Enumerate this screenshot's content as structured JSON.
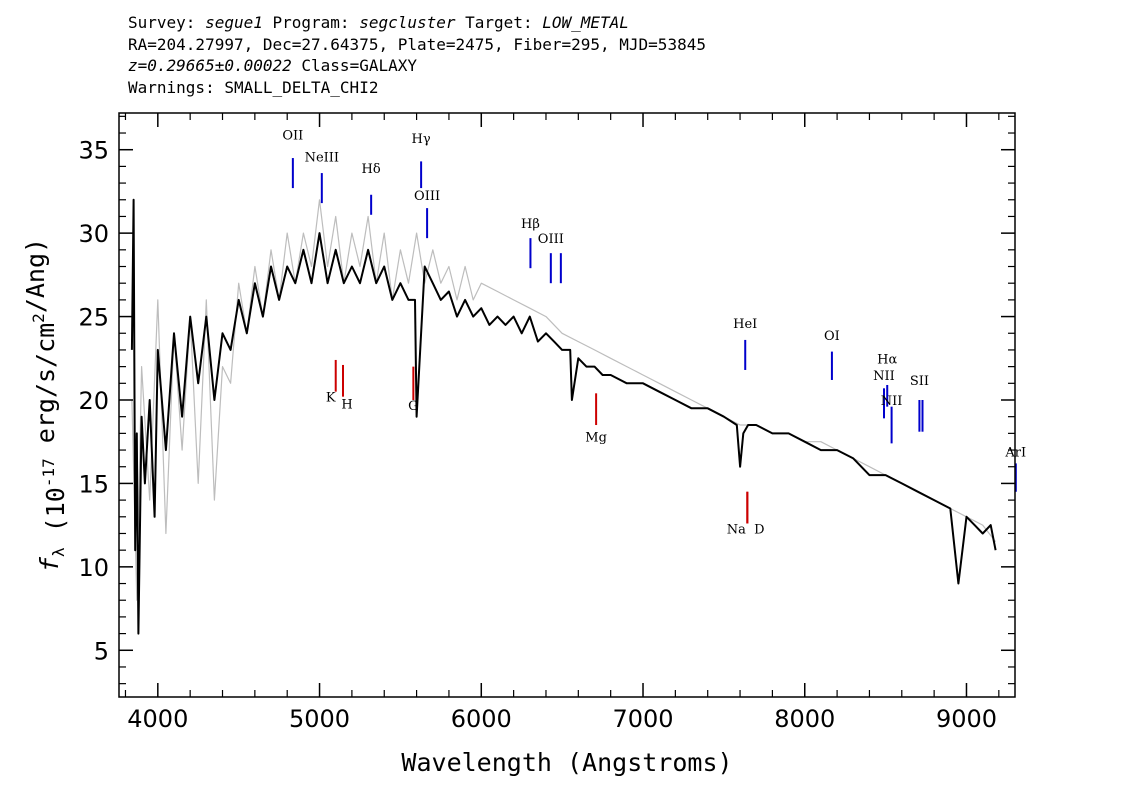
{
  "header": {
    "line1": {
      "survey_label": "Survey: ",
      "survey": "segue1",
      "program_label": " Program: ",
      "program": "segcluster",
      "target_label": " Target: ",
      "target": "LOW_METAL"
    },
    "line2": "RA=204.27997, Dec=27.64375, Plate=2475, Fiber=295, MJD=53845",
    "line3": {
      "z": "z=0.29665±0.00022",
      "class": " Class=GALAXY"
    },
    "line4": "Warnings: SMALL_DELTA_CHI2"
  },
  "chart_data": {
    "type": "line",
    "xlabel": "Wavelength (Angstroms)",
    "ylabel": "f_λ (10^-17 erg/s/cm^2/Ang)",
    "xlim": [
      3760,
      9300
    ],
    "ylim": [
      2.2,
      37.2
    ],
    "xticks": [
      4000,
      5000,
      6000,
      7000,
      8000,
      9000
    ],
    "yticks": [
      5,
      10,
      15,
      20,
      25,
      30,
      35
    ],
    "series": [
      {
        "role": "flux_noisy",
        "color": "#bdbdbd",
        "x": [
          3840,
          3870,
          3900,
          3950,
          4000,
          4050,
          4100,
          4150,
          4200,
          4250,
          4300,
          4350,
          4400,
          4450,
          4500,
          4550,
          4600,
          4650,
          4700,
          4750,
          4800,
          4850,
          4900,
          4950,
          5000,
          5050,
          5100,
          5150,
          5200,
          5250,
          5300,
          5350,
          5400,
          5450,
          5500,
          5550,
          5600,
          5650,
          5700,
          5750,
          5800,
          5850,
          5900,
          5950,
          6000,
          6100,
          6200,
          6300,
          6400,
          6500,
          6600,
          6700,
          6800,
          6900,
          7000,
          7100,
          7200,
          7300,
          7400,
          7500,
          7600,
          7700,
          7800,
          7900,
          8000,
          8100,
          8200,
          8300,
          8400,
          8500,
          8600,
          8700,
          8800,
          8900,
          9000,
          9100,
          9180
        ],
        "y": [
          20,
          8,
          22,
          14,
          26,
          12,
          24,
          17,
          25,
          15,
          26,
          14,
          22,
          21,
          27,
          24,
          28,
          25,
          29,
          26,
          30,
          27,
          30,
          28,
          32,
          28,
          31,
          27,
          30,
          28,
          31,
          27,
          30,
          26,
          29,
          27,
          30,
          27,
          29,
          27,
          28,
          26,
          28,
          26,
          27,
          26.5,
          26,
          25.5,
          25,
          24,
          23.5,
          23,
          22.5,
          22,
          21.5,
          21,
          20.5,
          20,
          19.5,
          19,
          18.5,
          18.5,
          18,
          18,
          17.5,
          17.5,
          17,
          16.5,
          16,
          15.5,
          15,
          14.5,
          14,
          13.5,
          13,
          12.5,
          11.5
        ]
      },
      {
        "role": "flux_smoothed",
        "color": "#000000",
        "x": [
          3840,
          3850,
          3860,
          3870,
          3880,
          3900,
          3920,
          3950,
          3980,
          4000,
          4050,
          4100,
          4150,
          4200,
          4250,
          4300,
          4350,
          4400,
          4450,
          4500,
          4550,
          4600,
          4650,
          4700,
          4750,
          4800,
          4850,
          4900,
          4950,
          5000,
          5050,
          5100,
          5150,
          5200,
          5250,
          5300,
          5350,
          5400,
          5450,
          5500,
          5550,
          5590,
          5600,
          5650,
          5700,
          5750,
          5800,
          5850,
          5900,
          5950,
          6000,
          6050,
          6100,
          6150,
          6200,
          6250,
          6300,
          6350,
          6400,
          6450,
          6500,
          6550,
          6560,
          6600,
          6650,
          6700,
          6750,
          6800,
          6900,
          7000,
          7100,
          7200,
          7300,
          7400,
          7500,
          7580,
          7600,
          7620,
          7650,
          7700,
          7800,
          7900,
          8000,
          8100,
          8200,
          8300,
          8400,
          8500,
          8600,
          8700,
          8800,
          8900,
          8950,
          9000,
          9050,
          9100,
          9150,
          9180
        ],
        "y": [
          23,
          32,
          11,
          18,
          6,
          19,
          15,
          20,
          13,
          23,
          17,
          24,
          19,
          25,
          21,
          25,
          20,
          24,
          23,
          26,
          24,
          27,
          25,
          28,
          26,
          28,
          27,
          29,
          27,
          30,
          27,
          29,
          27,
          28,
          27,
          29,
          27,
          28,
          26,
          27,
          26,
          26,
          19,
          28,
          27,
          26,
          26.5,
          25,
          26,
          25,
          25.5,
          24.5,
          25,
          24.5,
          25,
          24,
          25,
          23.5,
          24,
          23.5,
          23,
          23,
          20,
          22.5,
          22,
          22,
          21.5,
          21.5,
          21,
          21,
          20.5,
          20,
          19.5,
          19.5,
          19,
          18.5,
          16,
          18,
          18.5,
          18.5,
          18,
          18,
          17.5,
          17,
          17,
          16.5,
          15.5,
          15.5,
          15,
          14.5,
          14,
          13.5,
          9,
          13,
          12.5,
          12,
          12.5,
          11
        ]
      }
    ],
    "emission_lines": [
      {
        "label": "OII",
        "wl": 4835,
        "y_lo": 32.7,
        "y_hi": 34.5,
        "label_y": 35.6
      },
      {
        "label": "NeIII",
        "wl": 5014,
        "y_lo": 31.8,
        "y_hi": 33.6,
        "label_y": 34.3
      },
      {
        "label": "Hδ",
        "wl": 5319,
        "y_lo": 31.1,
        "y_hi": 32.3,
        "label_y": 33.6
      },
      {
        "label": "Hγ",
        "wl": 5628,
        "y_lo": 32.7,
        "y_hi": 34.3,
        "label_y": 35.4
      },
      {
        "label": "OIII",
        "wl": 5665,
        "y_lo": 29.7,
        "y_hi": 31.5,
        "label_y": 32.0
      },
      {
        "label": "Hβ",
        "wl": 6304,
        "y_lo": 27.9,
        "y_hi": 29.7,
        "label_y": 30.3
      },
      {
        "label": "OIII",
        "wl": 6430,
        "y_lo": 27.0,
        "y_hi": 28.8,
        "label_y": 29.4
      },
      {
        "label": "",
        "wl": 6492,
        "y_lo": 27.0,
        "y_hi": 28.8,
        "label_y": 29.4
      },
      {
        "label": "HeI",
        "wl": 7632,
        "y_lo": 21.8,
        "y_hi": 23.6,
        "label_y": 24.3
      },
      {
        "label": "OI",
        "wl": 8168,
        "y_lo": 21.2,
        "y_hi": 22.9,
        "label_y": 23.6
      },
      {
        "label": "NII",
        "wl": 8490,
        "y_lo": 18.9,
        "y_hi": 20.7,
        "label_y": 21.2
      },
      {
        "label": "Hα",
        "wl": 8510,
        "y_lo": 19.6,
        "y_hi": 20.9,
        "label_y": 22.2
      },
      {
        "label": "NII",
        "wl": 8537,
        "y_lo": 17.4,
        "y_hi": 19.6,
        "label_y": 19.7
      },
      {
        "label": "SII",
        "wl": 8709,
        "y_lo": 18.1,
        "y_hi": 20.0,
        "label_y": 20.9
      },
      {
        "label": "",
        "wl": 8728,
        "y_lo": 18.1,
        "y_hi": 20.0,
        "label_y": 20.9
      },
      {
        "label": "ArI",
        "wl": 9305,
        "y_lo": 14.5,
        "y_hi": 16.2,
        "label_y": 16.6
      }
    ],
    "absorption_lines": [
      {
        "label": "K",
        "wl": 5100,
        "y_lo": 20.5,
        "y_hi": 22.4,
        "label_y": 19.9
      },
      {
        "label": "H",
        "wl": 5145,
        "y_lo": 20.2,
        "y_hi": 22.1,
        "label_y": 19.5
      },
      {
        "label": "G",
        "wl": 5580,
        "y_lo": 20.0,
        "y_hi": 22.0,
        "label_y": 19.4
      },
      {
        "label": "Mg",
        "wl": 6710,
        "y_lo": 18.5,
        "y_hi": 20.4,
        "label_y": 17.5
      },
      {
        "label": "Na",
        "wl": 7645,
        "y_lo": 12.6,
        "y_hi": 14.5,
        "label_y": 12.0
      },
      {
        "label": "D",
        "wl": 7645,
        "y_lo": 12.6,
        "y_hi": 14.5,
        "label_y": 12.0
      }
    ],
    "colors": {
      "emission": "#0000cc",
      "absorption": "#cc0000",
      "axes": "#000000"
    }
  }
}
